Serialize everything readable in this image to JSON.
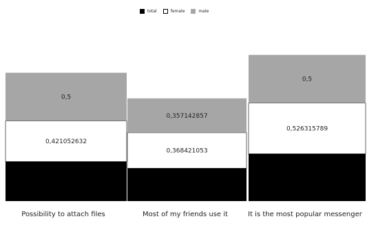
{
  "chart_data": {
    "type": "bar",
    "stacked": true,
    "categories": [
      "Possibility to attach files",
      "Most of my friends use it",
      "It is the most popular messenger"
    ],
    "series": [
      {
        "name": "total",
        "color": "#000000",
        "values": [
          0.41,
          0.34,
          0.49
        ]
      },
      {
        "name": "female",
        "color": "#ffffff",
        "values": [
          0.421052632,
          0.368421053,
          0.526315789
        ]
      },
      {
        "name": "male",
        "color": "#a6a6a6",
        "values": [
          0.5,
          0.357142857,
          0.5
        ]
      }
    ],
    "data_labels": {
      "female": [
        "0,421052632",
        "0,368421053",
        "0,526315789"
      ],
      "male": [
        "0,5",
        "0,357142857",
        "0,5"
      ]
    },
    "legend_position": "top-center",
    "grid": false
  }
}
